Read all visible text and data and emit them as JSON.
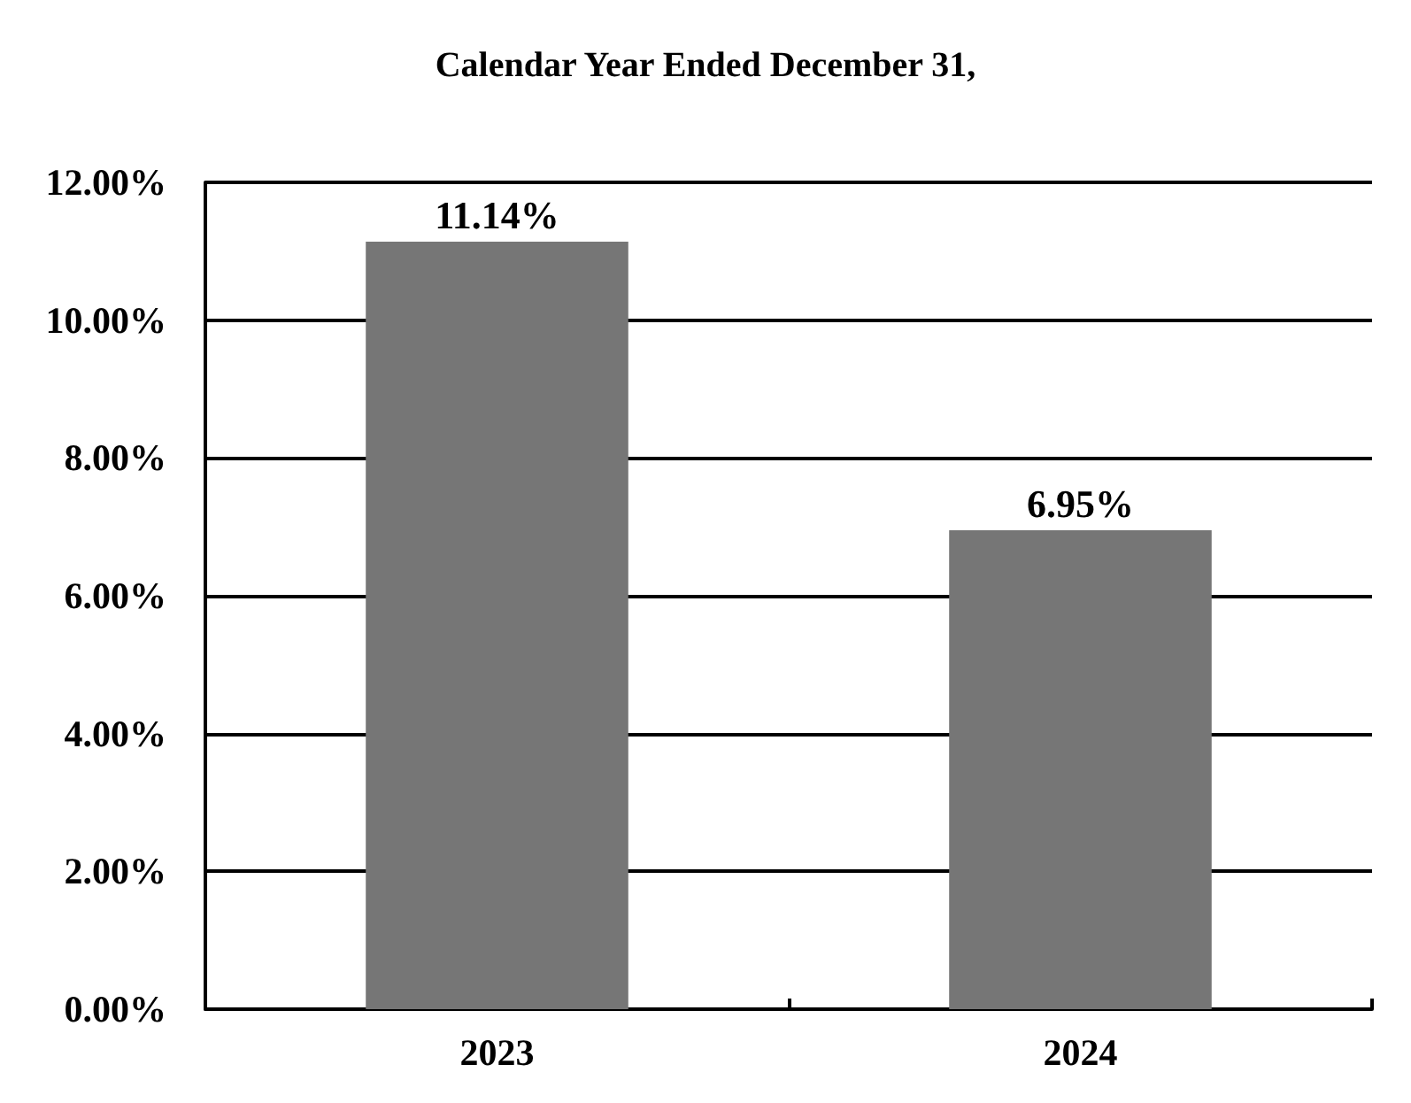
{
  "chart_data": {
    "type": "bar",
    "title": "Calendar Year Ended December 31,",
    "categories": [
      "2023",
      "2024"
    ],
    "values": [
      11.14,
      6.95
    ],
    "value_labels": [
      "11.14%",
      "6.95%"
    ],
    "color": "#767676",
    "ylim": [
      0,
      12
    ],
    "yticks": [
      {
        "value": 0,
        "label": "0.00%"
      },
      {
        "value": 2,
        "label": "2.00%"
      },
      {
        "value": 4,
        "label": "4.00%"
      },
      {
        "value": 6,
        "label": "6.00%"
      },
      {
        "value": 8,
        "label": "8.00%"
      },
      {
        "value": 10,
        "label": "10.00%"
      },
      {
        "value": 12,
        "label": "12.00%"
      }
    ],
    "grid": "y"
  }
}
